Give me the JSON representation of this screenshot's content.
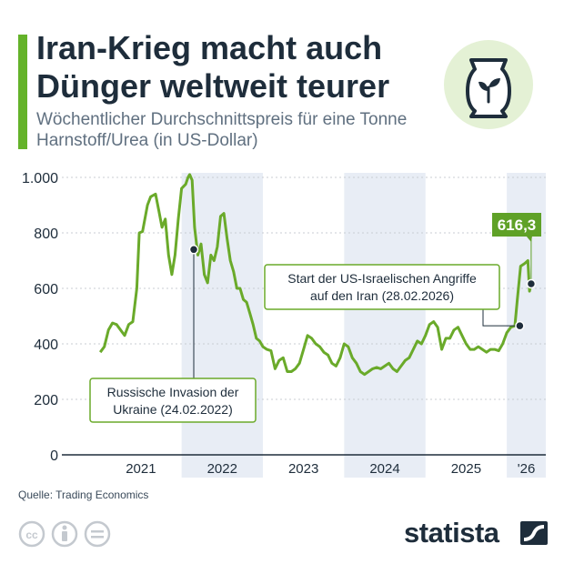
{
  "title": "Iran-Krieg macht auch Dünger weltweit teurer",
  "subtitle": "Wöchentlicher Durchschnittspreis für eine Tonne Harnstoff/Urea (in US-Dollar)",
  "icon": "fertilizer-bag-icon",
  "source": "Quelle: Trading Economics",
  "brand": "statista",
  "colors": {
    "accent": "#64b32a",
    "line": "#6aaa2a",
    "label_bg": "#5fa127",
    "shade": "#e8edf5",
    "text": "#1e2d3b"
  },
  "chart_data": {
    "type": "line",
    "title": "Iran-Krieg macht auch Dünger weltweit teurer",
    "subtitle": "Wöchentlicher Durchschnittspreis für eine Tonne Harnstoff/Urea (in US-Dollar)",
    "ylim": [
      0,
      1000
    ],
    "y_ticks": [
      0,
      200,
      400,
      600,
      800,
      1000
    ],
    "y_tick_labels": [
      "0",
      "200",
      "400",
      "600",
      "800",
      "1.000"
    ],
    "x_labels": [
      "2021",
      "2022",
      "2023",
      "2024",
      "2025",
      "'26"
    ],
    "grid": true,
    "series": [
      {
        "points": [
          [
            2021.0,
            370
          ],
          [
            2021.05,
            390
          ],
          [
            2021.1,
            450
          ],
          [
            2021.15,
            475
          ],
          [
            2021.2,
            470
          ],
          [
            2021.25,
            450
          ],
          [
            2021.3,
            430
          ],
          [
            2021.35,
            470
          ],
          [
            2021.4,
            480
          ],
          [
            2021.45,
            600
          ],
          [
            2021.48,
            800
          ],
          [
            2021.52,
            805
          ],
          [
            2021.58,
            900
          ],
          [
            2021.62,
            930
          ],
          [
            2021.68,
            940
          ],
          [
            2021.72,
            880
          ],
          [
            2021.76,
            820
          ],
          [
            2021.8,
            850
          ],
          [
            2021.84,
            720
          ],
          [
            2021.88,
            650
          ],
          [
            2021.92,
            720
          ],
          [
            2021.96,
            850
          ],
          [
            2022.0,
            960
          ],
          [
            2022.05,
            975
          ],
          [
            2022.08,
            1000
          ],
          [
            2022.1,
            1010
          ],
          [
            2022.13,
            990
          ],
          [
            2022.16,
            820
          ],
          [
            2022.2,
            720
          ],
          [
            2022.24,
            760
          ],
          [
            2022.28,
            650
          ],
          [
            2022.32,
            620
          ],
          [
            2022.36,
            720
          ],
          [
            2022.4,
            700
          ],
          [
            2022.44,
            750
          ],
          [
            2022.48,
            860
          ],
          [
            2022.52,
            870
          ],
          [
            2022.56,
            780
          ],
          [
            2022.6,
            700
          ],
          [
            2022.64,
            660
          ],
          [
            2022.68,
            600
          ],
          [
            2022.72,
            600
          ],
          [
            2022.76,
            560
          ],
          [
            2022.8,
            550
          ],
          [
            2022.84,
            510
          ],
          [
            2022.88,
            470
          ],
          [
            2022.92,
            420
          ],
          [
            2022.96,
            410
          ],
          [
            2023.0,
            390
          ],
          [
            2023.05,
            380
          ],
          [
            2023.1,
            375
          ],
          [
            2023.15,
            310
          ],
          [
            2023.2,
            340
          ],
          [
            2023.25,
            350
          ],
          [
            2023.3,
            300
          ],
          [
            2023.35,
            300
          ],
          [
            2023.4,
            310
          ],
          [
            2023.45,
            330
          ],
          [
            2023.5,
            380
          ],
          [
            2023.55,
            430
          ],
          [
            2023.6,
            420
          ],
          [
            2023.65,
            400
          ],
          [
            2023.7,
            390
          ],
          [
            2023.75,
            370
          ],
          [
            2023.8,
            360
          ],
          [
            2023.85,
            330
          ],
          [
            2023.9,
            320
          ],
          [
            2023.95,
            350
          ],
          [
            2024.0,
            400
          ],
          [
            2024.05,
            390
          ],
          [
            2024.1,
            350
          ],
          [
            2024.15,
            330
          ],
          [
            2024.2,
            300
          ],
          [
            2024.25,
            290
          ],
          [
            2024.3,
            300
          ],
          [
            2024.35,
            310
          ],
          [
            2024.4,
            315
          ],
          [
            2024.45,
            310
          ],
          [
            2024.5,
            320
          ],
          [
            2024.55,
            330
          ],
          [
            2024.6,
            310
          ],
          [
            2024.65,
            300
          ],
          [
            2024.7,
            320
          ],
          [
            2024.75,
            340
          ],
          [
            2024.8,
            350
          ],
          [
            2024.85,
            380
          ],
          [
            2024.9,
            410
          ],
          [
            2024.95,
            400
          ],
          [
            2025.0,
            430
          ],
          [
            2025.05,
            470
          ],
          [
            2025.1,
            480
          ],
          [
            2025.15,
            460
          ],
          [
            2025.2,
            380
          ],
          [
            2025.25,
            420
          ],
          [
            2025.3,
            420
          ],
          [
            2025.35,
            450
          ],
          [
            2025.4,
            460
          ],
          [
            2025.45,
            430
          ],
          [
            2025.5,
            400
          ],
          [
            2025.55,
            380
          ],
          [
            2025.6,
            380
          ],
          [
            2025.65,
            390
          ],
          [
            2025.7,
            380
          ],
          [
            2025.75,
            370
          ],
          [
            2025.8,
            380
          ],
          [
            2025.85,
            380
          ],
          [
            2025.9,
            375
          ],
          [
            2025.95,
            400
          ],
          [
            2026.0,
            440
          ],
          [
            2026.05,
            460
          ],
          [
            2026.1,
            465
          ],
          [
            2026.13,
            560
          ],
          [
            2026.17,
            680
          ],
          [
            2026.22,
            690
          ],
          [
            2026.26,
            700
          ],
          [
            2026.28,
            590
          ],
          [
            2026.3,
            616.3
          ]
        ]
      }
    ],
    "last_value_label": "616,3",
    "shaded_years": [
      "2022",
      "2024",
      "'26"
    ],
    "annotations": [
      {
        "text": "Russische Invasion der Ukraine (24.02.2022)",
        "x": 2022.15,
        "y": 740
      },
      {
        "text": "Start der US-Israelischen Angriffe auf den Iran (28.02.2026)",
        "x": 2026.16,
        "y": 465
      }
    ]
  }
}
